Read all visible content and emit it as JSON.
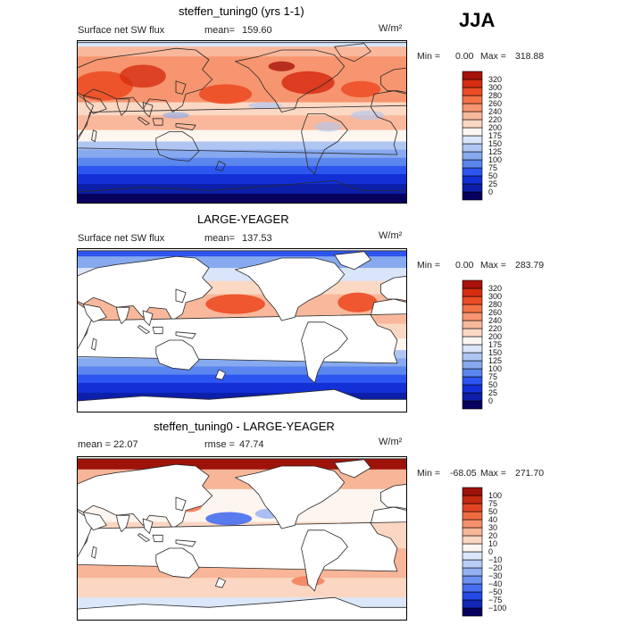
{
  "season": "JJA",
  "colors": {
    "positive_scale": [
      "#08005e",
      "#0d1fa8",
      "#1230d6",
      "#2d55f0",
      "#5b86ee",
      "#86a9ef",
      "#afc6f3",
      "#d9e5f8",
      "#fdf5ef",
      "#fbd8c4",
      "#f9b89c",
      "#f6956f",
      "#f37346",
      "#ec4c25",
      "#d72d12",
      "#a7130a"
    ],
    "diff_scale": [
      "#08005e",
      "#1127b3",
      "#2448e3",
      "#476ef0",
      "#6d91f0",
      "#93b0f3",
      "#b8cdf7",
      "#dbe7fa",
      "#fdf5ef",
      "#fbd6c2",
      "#f8b597",
      "#f5916b",
      "#f06b42",
      "#e34424",
      "#c62a10",
      "#9d1209"
    ],
    "land": "#ffffff",
    "coast": "#2a2a2a"
  },
  "panels": [
    {
      "title": "steffen_tuning0 (yrs 1-1)",
      "left_text": "Surface net SW flux",
      "stat_label": "mean=",
      "stat_value": "159.60",
      "units": "W/m²",
      "min_label": "Min =",
      "min_value": "0.00",
      "max_label": "Max =",
      "max_value": "318.88"
    },
    {
      "title": "LARGE-YEAGER",
      "left_text": "Surface net SW flux",
      "stat_label": "mean=",
      "stat_value": "137.53",
      "units": "W/m²",
      "min_label": "Min =",
      "min_value": "0.00",
      "max_label": "Max =",
      "max_value": "283.79"
    },
    {
      "title": "steffen_tuning0 - LARGE-YEAGER",
      "left_text": "mean =  22.07",
      "stat_label": "rmse =",
      "stat_value": "47.74",
      "units": "W/m²",
      "min_label": "Min =",
      "min_value": "-68.05",
      "max_label": "Max =",
      "max_value": "271.70"
    }
  ],
  "chart_data": [
    {
      "type": "heatmap",
      "title": "steffen_tuning0 (yrs 1-1)",
      "variable": "Surface net SW flux",
      "units": "W/m2",
      "mean": 159.6,
      "min": 0.0,
      "max": 318.88,
      "colorbar_levels": [
        0,
        25,
        50,
        75,
        100,
        125,
        150,
        175,
        200,
        220,
        240,
        260,
        280,
        300,
        320
      ]
    },
    {
      "type": "heatmap",
      "title": "LARGE-YEAGER",
      "variable": "Surface net SW flux",
      "units": "W/m2",
      "mean": 137.53,
      "min": 0.0,
      "max": 283.79,
      "colorbar_levels": [
        0,
        25,
        50,
        75,
        100,
        125,
        150,
        175,
        200,
        220,
        240,
        260,
        280,
        300,
        320
      ]
    },
    {
      "type": "heatmap",
      "title": "steffen_tuning0 - LARGE-YEAGER",
      "units": "W/m2",
      "mean": 22.07,
      "rmse": 47.74,
      "min": -68.05,
      "max": 271.7,
      "colorbar_levels": [
        -100,
        -75,
        -50,
        -40,
        -30,
        -20,
        -10,
        0,
        10,
        20,
        30,
        40,
        50,
        75,
        100
      ]
    }
  ]
}
